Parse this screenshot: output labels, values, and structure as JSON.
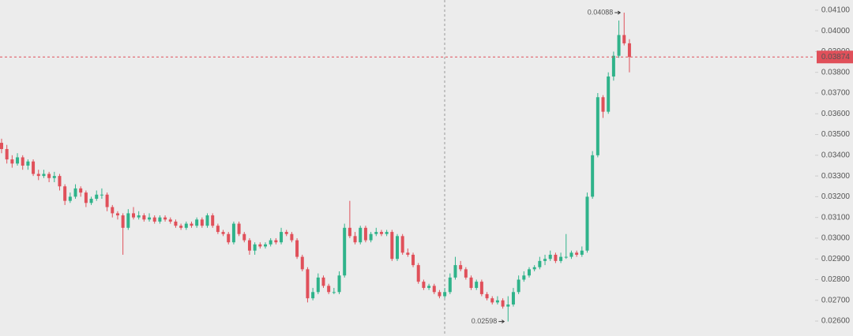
{
  "chart_data": {
    "type": "candlestick",
    "up_color": "#2fb38a",
    "down_color": "#e0505a",
    "ylim": [
      0.02528,
      0.04149
    ],
    "yticks": [
      {
        "value": 0.026,
        "label": "0.02600"
      },
      {
        "value": 0.027,
        "label": "0.02700"
      },
      {
        "value": 0.028,
        "label": "0.02800"
      },
      {
        "value": 0.029,
        "label": "0.02900"
      },
      {
        "value": 0.03,
        "label": "0.03000"
      },
      {
        "value": 0.031,
        "label": "0.03100"
      },
      {
        "value": 0.032,
        "label": "0.03200"
      },
      {
        "value": 0.033,
        "label": "0.03300"
      },
      {
        "value": 0.034,
        "label": "0.03400"
      },
      {
        "value": 0.035,
        "label": "0.03500"
      },
      {
        "value": 0.036,
        "label": "0.03600"
      },
      {
        "value": 0.037,
        "label": "0.03700"
      },
      {
        "value": 0.038,
        "label": "0.03800"
      },
      {
        "value": 0.039,
        "label": "0.03900"
      },
      {
        "value": 0.04,
        "label": "0.04000"
      },
      {
        "value": 0.041,
        "label": "0.04100"
      }
    ],
    "last_price": {
      "value": 0.03874,
      "label": "0.03874"
    },
    "annotations": [
      {
        "value": 0.04088,
        "label": "0.04088"
      },
      {
        "value": 0.02598,
        "label": "0.02598"
      }
    ],
    "ohlc": [
      [
        0.0346,
        0.0348,
        0.0341,
        0.0343
      ],
      [
        0.0343,
        0.0345,
        0.0336,
        0.0338
      ],
      [
        0.0338,
        0.034,
        0.0334,
        0.0336
      ],
      [
        0.0336,
        0.0341,
        0.0335,
        0.0339
      ],
      [
        0.0339,
        0.034,
        0.0333,
        0.0335
      ],
      [
        0.0335,
        0.0338,
        0.0333,
        0.0337
      ],
      [
        0.0337,
        0.0338,
        0.033,
        0.0331
      ],
      [
        0.0331,
        0.0333,
        0.0328,
        0.033
      ],
      [
        0.033,
        0.0333,
        0.0329,
        0.0331
      ],
      [
        0.0331,
        0.0332,
        0.0327,
        0.0329
      ],
      [
        0.0329,
        0.0332,
        0.0327,
        0.033
      ],
      [
        0.033,
        0.0331,
        0.0323,
        0.0325
      ],
      [
        0.0325,
        0.0326,
        0.0316,
        0.0318
      ],
      [
        0.0318,
        0.0322,
        0.0317,
        0.032
      ],
      [
        0.032,
        0.0326,
        0.0319,
        0.0324
      ],
      [
        0.0324,
        0.0325,
        0.032,
        0.0322
      ],
      [
        0.0322,
        0.0323,
        0.0315,
        0.0317
      ],
      [
        0.0317,
        0.032,
        0.0316,
        0.0319
      ],
      [
        0.0319,
        0.0323,
        0.0318,
        0.0321
      ],
      [
        0.0321,
        0.0324,
        0.0319,
        0.0321
      ],
      [
        0.0321,
        0.0322,
        0.0313,
        0.0315
      ],
      [
        0.0315,
        0.0316,
        0.031,
        0.0312
      ],
      [
        0.0312,
        0.0313,
        0.0309,
        0.0311
      ],
      [
        0.0311,
        0.0312,
        0.0292,
        0.0305
      ],
      [
        0.0305,
        0.0314,
        0.0304,
        0.0312
      ],
      [
        0.0312,
        0.0315,
        0.0309,
        0.031
      ],
      [
        0.031,
        0.0313,
        0.0309,
        0.0311
      ],
      [
        0.0311,
        0.0312,
        0.0308,
        0.0309
      ],
      [
        0.0309,
        0.0312,
        0.0308,
        0.031
      ],
      [
        0.031,
        0.0311,
        0.0307,
        0.0308
      ],
      [
        0.0308,
        0.0311,
        0.0307,
        0.031
      ],
      [
        0.031,
        0.0311,
        0.0308,
        0.0309
      ],
      [
        0.0309,
        0.031,
        0.0307,
        0.0308
      ],
      [
        0.0308,
        0.0309,
        0.0305,
        0.0306
      ],
      [
        0.0306,
        0.0307,
        0.0304,
        0.0305
      ],
      [
        0.0305,
        0.0308,
        0.0304,
        0.0307
      ],
      [
        0.0307,
        0.0308,
        0.0305,
        0.0306
      ],
      [
        0.0306,
        0.031,
        0.0305,
        0.0309
      ],
      [
        0.0309,
        0.031,
        0.0305,
        0.0306
      ],
      [
        0.0306,
        0.0312,
        0.0305,
        0.0311
      ],
      [
        0.0311,
        0.0312,
        0.0305,
        0.0306
      ],
      [
        0.0306,
        0.0307,
        0.0302,
        0.0303
      ],
      [
        0.0303,
        0.0304,
        0.0301,
        0.0302
      ],
      [
        0.0302,
        0.0303,
        0.0297,
        0.0298
      ],
      [
        0.0298,
        0.0308,
        0.0297,
        0.0307
      ],
      [
        0.0307,
        0.0308,
        0.0301,
        0.0302
      ],
      [
        0.0302,
        0.0303,
        0.0298,
        0.0299
      ],
      [
        0.0299,
        0.03,
        0.0292,
        0.0294
      ],
      [
        0.0294,
        0.0298,
        0.0292,
        0.0297
      ],
      [
        0.0297,
        0.0298,
        0.0295,
        0.0296
      ],
      [
        0.0296,
        0.0298,
        0.0295,
        0.0297
      ],
      [
        0.0297,
        0.03,
        0.0296,
        0.0299
      ],
      [
        0.0299,
        0.03,
        0.0297,
        0.0298
      ],
      [
        0.0298,
        0.0305,
        0.0297,
        0.0303
      ],
      [
        0.0303,
        0.0304,
        0.0301,
        0.0302
      ],
      [
        0.0302,
        0.0303,
        0.0298,
        0.0299
      ],
      [
        0.0299,
        0.03,
        0.029,
        0.0291
      ],
      [
        0.0291,
        0.0292,
        0.0284,
        0.0285
      ],
      [
        0.0285,
        0.0286,
        0.0269,
        0.0271
      ],
      [
        0.0271,
        0.0276,
        0.027,
        0.0274
      ],
      [
        0.0274,
        0.0283,
        0.0273,
        0.0281
      ],
      [
        0.0281,
        0.0282,
        0.0276,
        0.0277
      ],
      [
        0.0277,
        0.0278,
        0.0273,
        0.0274
      ],
      [
        0.0274,
        0.0276,
        0.0273,
        0.0274
      ],
      [
        0.0274,
        0.0284,
        0.0273,
        0.0282
      ],
      [
        0.0282,
        0.0307,
        0.0281,
        0.0305
      ],
      [
        0.0305,
        0.0318,
        0.03,
        0.0301
      ],
      [
        0.0301,
        0.0303,
        0.0297,
        0.0298
      ],
      [
        0.0298,
        0.0306,
        0.0297,
        0.0305
      ],
      [
        0.0305,
        0.0306,
        0.0298,
        0.0299
      ],
      [
        0.0299,
        0.0303,
        0.0298,
        0.0302
      ],
      [
        0.0302,
        0.0305,
        0.0301,
        0.0303
      ],
      [
        0.0303,
        0.0304,
        0.0301,
        0.0302
      ],
      [
        0.0302,
        0.0304,
        0.0301,
        0.0303
      ],
      [
        0.0303,
        0.0304,
        0.0289,
        0.029
      ],
      [
        0.029,
        0.0302,
        0.0289,
        0.0301
      ],
      [
        0.0301,
        0.0302,
        0.0292,
        0.0293
      ],
      [
        0.0293,
        0.0295,
        0.0291,
        0.0292
      ],
      [
        0.0292,
        0.0293,
        0.0286,
        0.0287
      ],
      [
        0.0287,
        0.0288,
        0.0278,
        0.0279
      ],
      [
        0.0279,
        0.028,
        0.0275,
        0.0276
      ],
      [
        0.0276,
        0.0278,
        0.0275,
        0.0277
      ],
      [
        0.0277,
        0.0278,
        0.0273,
        0.0274
      ],
      [
        0.0274,
        0.0275,
        0.0271,
        0.0272
      ],
      [
        0.0272,
        0.0276,
        0.0271,
        0.0274
      ],
      [
        0.0274,
        0.0283,
        0.0273,
        0.0281
      ],
      [
        0.0281,
        0.0291,
        0.028,
        0.0287
      ],
      [
        0.0287,
        0.0289,
        0.0284,
        0.0285
      ],
      [
        0.0285,
        0.0286,
        0.028,
        0.0281
      ],
      [
        0.0281,
        0.0282,
        0.0275,
        0.0276
      ],
      [
        0.0276,
        0.028,
        0.0275,
        0.0279
      ],
      [
        0.0279,
        0.028,
        0.0272,
        0.0273
      ],
      [
        0.0273,
        0.0274,
        0.027,
        0.0271
      ],
      [
        0.0271,
        0.0272,
        0.0268,
        0.0269
      ],
      [
        0.0269,
        0.0272,
        0.0268,
        0.027
      ],
      [
        0.027,
        0.0271,
        0.0266,
        0.0267
      ],
      [
        0.0267,
        0.0272,
        0.02598,
        0.0268
      ],
      [
        0.0268,
        0.0276,
        0.0267,
        0.0274
      ],
      [
        0.0274,
        0.0282,
        0.0273,
        0.028
      ],
      [
        0.028,
        0.0284,
        0.0279,
        0.0282
      ],
      [
        0.0282,
        0.0286,
        0.0281,
        0.0285
      ],
      [
        0.0285,
        0.0287,
        0.0284,
        0.0286
      ],
      [
        0.0286,
        0.0291,
        0.0285,
        0.0289
      ],
      [
        0.0289,
        0.0292,
        0.0287,
        0.029
      ],
      [
        0.029,
        0.0294,
        0.0289,
        0.0292
      ],
      [
        0.0292,
        0.0293,
        0.0288,
        0.0289
      ],
      [
        0.0289,
        0.0293,
        0.0288,
        0.0291
      ],
      [
        0.0291,
        0.0302,
        0.029,
        0.0291
      ],
      [
        0.0291,
        0.0294,
        0.029,
        0.0293
      ],
      [
        0.0293,
        0.0294,
        0.0291,
        0.0292
      ],
      [
        0.0292,
        0.0296,
        0.0291,
        0.0294
      ],
      [
        0.0294,
        0.0322,
        0.0293,
        0.032
      ],
      [
        0.032,
        0.0342,
        0.0319,
        0.034
      ],
      [
        0.034,
        0.037,
        0.0339,
        0.0368
      ],
      [
        0.0368,
        0.0369,
        0.0358,
        0.0361
      ],
      [
        0.0361,
        0.038,
        0.036,
        0.0378
      ],
      [
        0.0378,
        0.039,
        0.0376,
        0.0388
      ],
      [
        0.0388,
        0.0405,
        0.0387,
        0.0398
      ],
      [
        0.0398,
        0.04088,
        0.0393,
        0.0394
      ],
      [
        0.0394,
        0.0396,
        0.038,
        0.03874
      ]
    ]
  }
}
